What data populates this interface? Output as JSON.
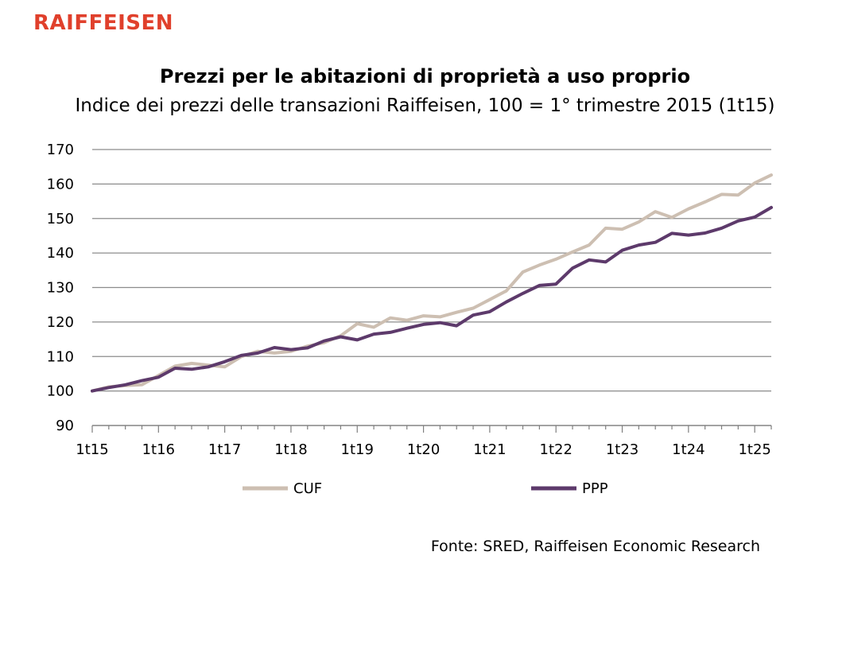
{
  "brand": {
    "logo_text": "RAIFFEISEN",
    "accent": "#e0402c"
  },
  "chart_data": {
    "type": "line",
    "title": "Prezzi per le abitazioni di proprietà a uso proprio",
    "subtitle": "Indice dei prezzi delle transazioni Raiffeisen, 100 = 1° trimestre 2015 (1t15)",
    "ylim": [
      90,
      170
    ],
    "yticks": [
      90,
      100,
      110,
      120,
      130,
      140,
      150,
      160,
      170
    ],
    "xlim": [
      0,
      41
    ],
    "xticks": [
      {
        "pos": 0,
        "label": "1t15"
      },
      {
        "pos": 4,
        "label": "1t16"
      },
      {
        "pos": 8,
        "label": "1t17"
      },
      {
        "pos": 12,
        "label": "1t18"
      },
      {
        "pos": 16,
        "label": "1t19"
      },
      {
        "pos": 20,
        "label": "1t20"
      },
      {
        "pos": 24,
        "label": "1t21"
      },
      {
        "pos": 28,
        "label": "1t22"
      },
      {
        "pos": 32,
        "label": "1t23"
      },
      {
        "pos": 36,
        "label": "1t24"
      },
      {
        "pos": 40,
        "label": "1t25"
      }
    ],
    "grid": true,
    "legend_position": "bottom",
    "series": [
      {
        "name": "CUF",
        "color": "#cdbfb2",
        "values": [
          100,
          101.2,
          101.6,
          101.8,
          104.5,
          107.2,
          108.0,
          107.5,
          107.0,
          110.0,
          111.5,
          111.0,
          111.5,
          113.0,
          114.0,
          116.0,
          119.5,
          118.5,
          121.2,
          120.5,
          121.8,
          121.5,
          122.8,
          124.0,
          126.5,
          129.0,
          134.5,
          136.5,
          138.2,
          140.3,
          142.3,
          147.2,
          146.9,
          149.0,
          152.0,
          150.3,
          152.8,
          154.8,
          157.0,
          156.8,
          160.3,
          162.6
        ]
      },
      {
        "name": "PPP",
        "color": "#5d3a6b",
        "values": [
          100,
          101.0,
          101.8,
          103.0,
          104.0,
          106.6,
          106.3,
          107.0,
          108.5,
          110.3,
          111.0,
          112.6,
          112.0,
          112.5,
          114.5,
          115.7,
          114.8,
          116.5,
          117.0,
          118.2,
          119.3,
          119.8,
          118.9,
          122.0,
          123.0,
          125.8,
          128.3,
          130.6,
          131.0,
          135.6,
          138.0,
          137.4,
          140.8,
          142.3,
          143.1,
          145.7,
          145.2,
          145.8,
          147.2,
          149.3,
          150.4,
          153.2
        ]
      }
    ]
  },
  "source": "Fonte: SRED, Raiffeisen Economic Research"
}
